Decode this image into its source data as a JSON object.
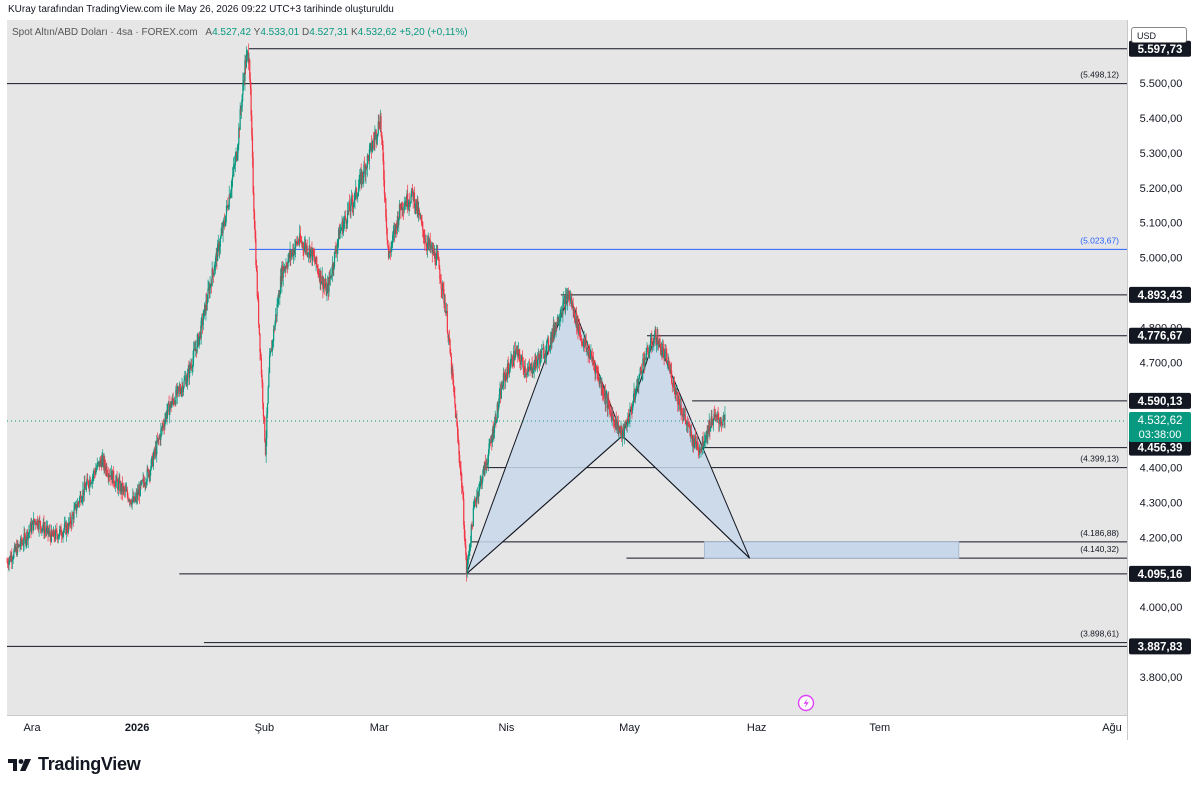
{
  "header": {
    "caption": "KUray tarafından TradingView.com ile May 26, 2026 09:22 UTC+3 tarihinde oluşturuldu"
  },
  "legend": {
    "symbol": "Spot Altın/ABD Doları · 4sa · FOREX.com",
    "open_label": "A",
    "open": "4.527,42",
    "high_label": "Y",
    "high": "4.533,01",
    "low_label": "D",
    "low": "4.527,31",
    "close_label": "K",
    "close": "4.532,62",
    "change": "+5,20 (+0,11%)"
  },
  "price_axis": {
    "currency": "USD",
    "ticks": [
      "5.500,00",
      "5.400,00",
      "5.300,00",
      "5.200,00",
      "5.100,00",
      "5.000,00",
      "4.800,00",
      "4.700,00",
      "4.400,00",
      "4.300,00",
      "4.200,00",
      "4.000,00",
      "3.800,00"
    ],
    "current_price": "4.532,62",
    "countdown": "03:38:00"
  },
  "time_axis": {
    "labels": [
      "Ara",
      "2026",
      "Şub",
      "Mar",
      "Nis",
      "May",
      "Haz",
      "Tem",
      "Ağu"
    ]
  },
  "footer": {
    "brand": "TradingView"
  },
  "colors": {
    "up": "#089981",
    "down": "#f23645",
    "blue_level": "#2962ff",
    "pattern_fill": "#c8d7ea",
    "plot_bg": "#e6e6e6"
  },
  "chart_data": {
    "type": "candlestick",
    "title": "Spot Altın/ABD Doları · 4sa · FOREX.com",
    "x_range": [
      "2025-12-01",
      "2026-08-31"
    ],
    "ylim": [
      3720,
      5600
    ],
    "grid": false,
    "close_path": [
      [
        "2025-12-01",
        4130
      ],
      [
        "2025-12-05",
        4190
      ],
      [
        "2025-12-08",
        4250
      ],
      [
        "2025-12-12",
        4200
      ],
      [
        "2025-12-16",
        4230
      ],
      [
        "2025-12-19",
        4320
      ],
      [
        "2025-12-24",
        4420
      ],
      [
        "2025-12-28",
        4350
      ],
      [
        "2026-01-01",
        4300
      ],
      [
        "2026-01-05",
        4400
      ],
      [
        "2026-01-09",
        4560
      ],
      [
        "2026-01-14",
        4660
      ],
      [
        "2026-01-17",
        4780
      ],
      [
        "2026-01-20",
        4950
      ],
      [
        "2026-01-23",
        5100
      ],
      [
        "2026-01-26",
        5300
      ],
      [
        "2026-01-28",
        5550
      ],
      [
        "2026-01-29",
        5590
      ],
      [
        "2026-01-30",
        5200
      ],
      [
        "2026-01-31",
        4900
      ],
      [
        "2026-02-02",
        4450
      ],
      [
        "2026-02-03",
        4700
      ],
      [
        "2026-02-06",
        4960
      ],
      [
        "2026-02-10",
        5050
      ],
      [
        "2026-02-13",
        5020
      ],
      [
        "2026-02-17",
        4900
      ],
      [
        "2026-02-20",
        5070
      ],
      [
        "2026-02-24",
        5180
      ],
      [
        "2026-02-28",
        5320
      ],
      [
        "2026-03-02",
        5400
      ],
      [
        "2026-03-04",
        5000
      ],
      [
        "2026-03-07",
        5150
      ],
      [
        "2026-03-10",
        5180
      ],
      [
        "2026-03-13",
        5050
      ],
      [
        "2026-03-16",
        4990
      ],
      [
        "2026-03-18",
        4850
      ],
      [
        "2026-03-20",
        4600
      ],
      [
        "2026-03-22",
        4330
      ],
      [
        "2026-03-23",
        4100
      ],
      [
        "2026-03-25",
        4300
      ],
      [
        "2026-03-28",
        4420
      ],
      [
        "2026-04-01",
        4650
      ],
      [
        "2026-04-04",
        4730
      ],
      [
        "2026-04-07",
        4670
      ],
      [
        "2026-04-12",
        4750
      ],
      [
        "2026-04-15",
        4850
      ],
      [
        "2026-04-17",
        4893
      ],
      [
        "2026-04-20",
        4770
      ],
      [
        "2026-04-23",
        4700
      ],
      [
        "2026-04-27",
        4560
      ],
      [
        "2026-04-30",
        4490
      ],
      [
        "2026-05-02",
        4560
      ],
      [
        "2026-05-05",
        4700
      ],
      [
        "2026-05-08",
        4776
      ],
      [
        "2026-05-11",
        4700
      ],
      [
        "2026-05-14",
        4580
      ],
      [
        "2026-05-17",
        4480
      ],
      [
        "2026-05-19",
        4456
      ],
      [
        "2026-05-22",
        4540
      ],
      [
        "2026-05-25",
        4532
      ]
    ],
    "levels": [
      {
        "price": 5597.73,
        "label": "5.597,73",
        "style": "tag",
        "from": "2026-01-29"
      },
      {
        "price": 5498.12,
        "label": "(5.498,12)",
        "style": "paren",
        "from": "2025-12-01"
      },
      {
        "price": 5023.67,
        "label": "(5.023,67)",
        "style": "paren-blue",
        "from": "2026-01-29"
      },
      {
        "price": 4893.43,
        "label": "4.893,43",
        "style": "tag",
        "from": "2026-04-15"
      },
      {
        "price": 4776.67,
        "label": "4.776,67",
        "style": "tag",
        "from": "2026-05-06"
      },
      {
        "price": 4590.13,
        "label": "4.590,13",
        "style": "tag",
        "from": "2026-05-17"
      },
      {
        "price": 4456.39,
        "label": "4.456,39",
        "style": "tag",
        "from": "2026-05-17"
      },
      {
        "price": 4399.13,
        "label": "(4.399,13)",
        "style": "paren",
        "from": "2026-03-27"
      },
      {
        "price": 4186.88,
        "label": "(4.186,88)",
        "style": "paren",
        "from": "2026-03-24"
      },
      {
        "price": 4140.32,
        "label": "(4.140,32)",
        "style": "paren",
        "from": "2026-05-01"
      },
      {
        "price": 4095.16,
        "label": "4.095,16",
        "style": "tag",
        "from": "2026-01-12"
      },
      {
        "price": 3898.61,
        "label": "(3.898,61)",
        "style": "paren",
        "from": "2026-01-18"
      },
      {
        "price": 3887.83,
        "label": "3.887,83",
        "style": "tag",
        "from": "2025-12-01"
      }
    ],
    "harmonic_pattern": {
      "X": [
        "2026-03-23",
        4095.16
      ],
      "A": [
        "2026-04-17",
        4893.43
      ],
      "B": [
        "2026-04-30",
        4490
      ],
      "C": [
        "2026-05-08",
        4776.67
      ],
      "D": [
        "2026-05-31",
        4140.32
      ]
    },
    "target_zone": {
      "from": "2026-05-20",
      "to": "2026-07-21",
      "top": 4186.88,
      "bottom": 4140.32
    }
  }
}
